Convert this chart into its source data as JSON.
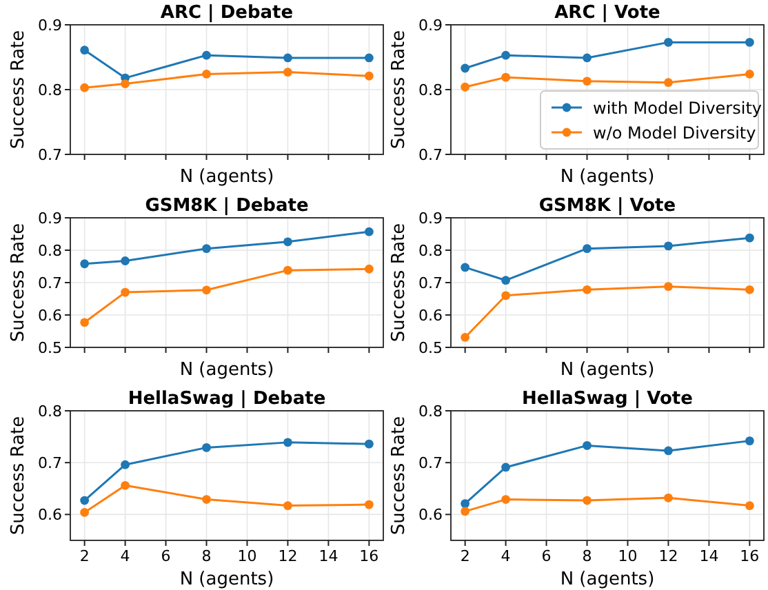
{
  "chart_data": [
    {
      "type": "line",
      "title": "ARC | Debate",
      "xlabel": "N (agents)",
      "ylabel": "Success Rate",
      "x": [
        2,
        4,
        8,
        12,
        16
      ],
      "xlim": [
        1.3,
        16.7
      ],
      "xticks": [
        2,
        4,
        6,
        8,
        10,
        12,
        14,
        16
      ],
      "ylim": [
        0.7,
        0.9
      ],
      "yticks": [
        0.7,
        0.8,
        0.9
      ],
      "grid": true,
      "tick_labels": "y",
      "marker": "circle",
      "series": [
        {
          "color": "#1f77b4",
          "values": [
            0.861,
            0.818,
            0.853,
            0.849,
            0.849
          ]
        },
        {
          "color": "#ff7f0e",
          "values": [
            0.803,
            0.809,
            0.824,
            0.827,
            0.821
          ]
        }
      ]
    },
    {
      "type": "line",
      "title": "ARC | Vote",
      "xlabel": "N (agents)",
      "ylabel": "Success Rate",
      "x": [
        2,
        4,
        8,
        12,
        16
      ],
      "xlim": [
        1.3,
        16.7
      ],
      "xticks": [
        2,
        4,
        6,
        8,
        10,
        12,
        14,
        16
      ],
      "ylim": [
        0.7,
        0.9
      ],
      "yticks": [
        0.7,
        0.8,
        0.9
      ],
      "grid": true,
      "tick_labels": "y",
      "marker": "circle",
      "legend": "bottom right",
      "series": [
        {
          "name": "with Model Diversity",
          "color": "#1f77b4",
          "values": [
            0.833,
            0.853,
            0.849,
            0.873,
            0.873
          ]
        },
        {
          "name": "w/o Model Diversity",
          "color": "#ff7f0e",
          "values": [
            0.804,
            0.819,
            0.813,
            0.811,
            0.824
          ]
        }
      ]
    },
    {
      "type": "line",
      "title": "GSM8K | Debate",
      "xlabel": "N (agents)",
      "ylabel": "Success Rate",
      "x": [
        2,
        4,
        8,
        12,
        16
      ],
      "xlim": [
        1.3,
        16.7
      ],
      "xticks": [
        2,
        4,
        6,
        8,
        10,
        12,
        14,
        16
      ],
      "ylim": [
        0.5,
        0.9
      ],
      "yticks": [
        0.5,
        0.6,
        0.7,
        0.8,
        0.9
      ],
      "grid": true,
      "tick_labels": "y",
      "marker": "circle",
      "series": [
        {
          "color": "#1f77b4",
          "values": [
            0.758,
            0.767,
            0.805,
            0.826,
            0.857
          ]
        },
        {
          "color": "#ff7f0e",
          "values": [
            0.577,
            0.67,
            0.677,
            0.738,
            0.742
          ]
        }
      ]
    },
    {
      "type": "line",
      "title": "GSM8K | Vote",
      "xlabel": "N (agents)",
      "ylabel": "Success Rate",
      "x": [
        2,
        4,
        8,
        12,
        16
      ],
      "xlim": [
        1.3,
        16.7
      ],
      "xticks": [
        2,
        4,
        6,
        8,
        10,
        12,
        14,
        16
      ],
      "ylim": [
        0.5,
        0.9
      ],
      "yticks": [
        0.5,
        0.6,
        0.7,
        0.8,
        0.9
      ],
      "grid": true,
      "tick_labels": "y",
      "marker": "circle",
      "series": [
        {
          "color": "#1f77b4",
          "values": [
            0.747,
            0.707,
            0.805,
            0.813,
            0.838
          ]
        },
        {
          "color": "#ff7f0e",
          "values": [
            0.531,
            0.66,
            0.678,
            0.688,
            0.678
          ]
        }
      ]
    },
    {
      "type": "line",
      "title": "HellaSwag | Debate",
      "xlabel": "N (agents)",
      "ylabel": "Success Rate",
      "x": [
        2,
        4,
        8,
        12,
        16
      ],
      "xlim": [
        1.3,
        16.7
      ],
      "xticks": [
        2,
        4,
        6,
        8,
        10,
        12,
        14,
        16
      ],
      "ylim": [
        0.55,
        0.8
      ],
      "yticks": [
        0.6,
        0.7,
        0.8
      ],
      "grid": true,
      "marker": "circle",
      "series": [
        {
          "color": "#1f77b4",
          "values": [
            0.627,
            0.696,
            0.729,
            0.739,
            0.736
          ]
        },
        {
          "color": "#ff7f0e",
          "values": [
            0.604,
            0.656,
            0.629,
            0.617,
            0.619
          ]
        }
      ]
    },
    {
      "type": "line",
      "title": "HellaSwag | Vote",
      "xlabel": "N (agents)",
      "ylabel": "Success Rate",
      "x": [
        2,
        4,
        8,
        12,
        16
      ],
      "xlim": [
        1.3,
        16.7
      ],
      "xticks": [
        2,
        4,
        6,
        8,
        10,
        12,
        14,
        16
      ],
      "ylim": [
        0.55,
        0.8
      ],
      "yticks": [
        0.6,
        0.7,
        0.8
      ],
      "grid": true,
      "marker": "circle",
      "series": [
        {
          "color": "#1f77b4",
          "values": [
            0.621,
            0.691,
            0.733,
            0.723,
            0.742
          ]
        },
        {
          "color": "#ff7f0e",
          "values": [
            0.606,
            0.629,
            0.627,
            0.632,
            0.617
          ]
        }
      ]
    }
  ]
}
